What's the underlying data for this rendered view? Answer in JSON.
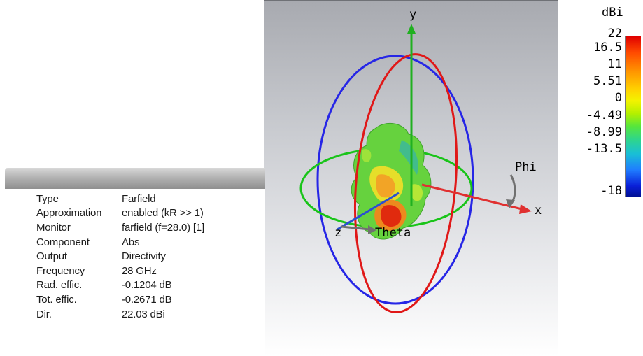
{
  "viewport": {
    "axes": {
      "y": "y",
      "x": "x",
      "z": "z",
      "phi": "Phi",
      "theta": "Theta"
    }
  },
  "info_panel": {
    "rows": [
      {
        "key": "Type",
        "value": "Farfield"
      },
      {
        "key": "Approximation",
        "value": "enabled (kR >> 1)"
      },
      {
        "key": "Monitor",
        "value": "farfield (f=28.0) [1]"
      },
      {
        "key": "Component",
        "value": "Abs"
      },
      {
        "key": "Output",
        "value": "Directivity"
      },
      {
        "key": "Frequency",
        "value": "28 GHz"
      },
      {
        "key": "Rad. effic.",
        "value": "-0.1204 dB"
      },
      {
        "key": "Tot. effic.",
        "value": "-0.2671 dB"
      },
      {
        "key": "Dir.",
        "value": "22.03 dBi"
      }
    ]
  },
  "legend": {
    "unit": "dBi",
    "ticks": [
      "22",
      "16.5",
      "11",
      "5.51",
      "0",
      "-4.49",
      "-8.99",
      "-13.5",
      "-18"
    ]
  },
  "colors": {
    "phi_ring": "#19c419",
    "theta_ring": "#e01818",
    "outer_ring": "#2626e6",
    "x_axis": "#e03030",
    "y_axis": "#20b020",
    "z_axis": "#2a4fd0"
  }
}
